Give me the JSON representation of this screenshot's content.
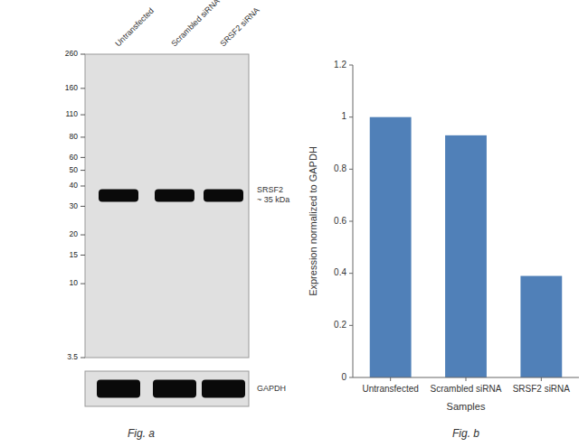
{
  "chart_data": [
    {
      "type": "western_blot",
      "title": "Fig. a",
      "categories": [
        "Untransfected",
        "Scrambled siRNA",
        "SRSF2 siRNA"
      ],
      "log": "y",
      "ylim": [
        3.5,
        260
      ],
      "yticks": [
        260,
        160,
        110,
        80,
        60,
        50,
        40,
        30,
        20,
        15,
        10,
        3.5
      ],
      "series": [
        {
          "name": "SRSF2\n~ 35 kDa",
          "color": "#0a0a0a",
          "values": [
            35,
            35,
            35
          ]
        }
      ],
      "annotations": [
        "GAPDH"
      ]
    },
    {
      "type": "bar",
      "title": "Fig. b",
      "categories": [
        "Untransfected",
        "Scrambled siRNA",
        "SRSF2 siRNA"
      ],
      "values": [
        1.0,
        0.93,
        0.39
      ],
      "color": "#5080b8",
      "xlabel": "Samples",
      "ylabel": "Expression normalized to GAPDH",
      "ylim": [
        0,
        1.2
      ],
      "yticks": [
        0,
        0.2,
        0.4,
        0.6,
        0.8,
        1,
        1.2
      ],
      "grid": false
    }
  ]
}
